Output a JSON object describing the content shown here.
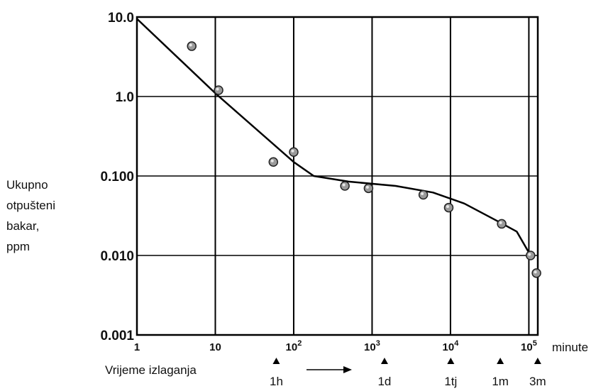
{
  "chart_data": {
    "type": "line",
    "xscale": "log",
    "yscale": "log",
    "xlim": [
      1,
      130000
    ],
    "ylim": [
      0.001,
      10
    ],
    "grid": true,
    "y_ticks": [
      {
        "value": 10,
        "label": "10.0"
      },
      {
        "value": 1,
        "label": "1.0"
      },
      {
        "value": 0.1,
        "label": "0.100"
      },
      {
        "value": 0.01,
        "label": "0.010"
      },
      {
        "value": 0.001,
        "label": "0.001"
      }
    ],
    "x_ticks": [
      {
        "value": 1,
        "base": "1",
        "exp": ""
      },
      {
        "value": 10,
        "base": "10",
        "exp": ""
      },
      {
        "value": 100,
        "base": "10",
        "exp": "2"
      },
      {
        "value": 1000,
        "base": "10",
        "exp": "3"
      },
      {
        "value": 10000,
        "base": "10",
        "exp": "4"
      },
      {
        "value": 100000,
        "base": "10",
        "exp": "5"
      }
    ],
    "ylabel_lines": [
      "Ukupno",
      "otpušteni",
      "bakar,",
      "ppm"
    ],
    "xlabel": "Vrijeme izlaganja",
    "xunit": "minute",
    "markers": [
      {
        "value": 60,
        "label": "1h"
      },
      {
        "value": 1440,
        "label": "1d"
      },
      {
        "value": 10080,
        "label": "1tj"
      },
      {
        "value": 43200,
        "label": "1m"
      },
      {
        "value": 129600,
        "label": "3m"
      }
    ],
    "series": [
      {
        "kind": "points",
        "x": [
          5,
          11,
          55,
          100,
          450,
          900,
          4500,
          9500,
          45000,
          105000,
          125000
        ],
        "y": [
          4.3,
          1.2,
          0.15,
          0.2,
          0.075,
          0.07,
          0.058,
          0.04,
          0.025,
          0.01,
          0.006
        ]
      },
      {
        "kind": "curve",
        "x": [
          1,
          10,
          100,
          180,
          500,
          2000,
          6000,
          15000,
          40000,
          70000,
          105000
        ],
        "y": [
          9.5,
          1.1,
          0.15,
          0.1,
          0.085,
          0.075,
          0.062,
          0.045,
          0.027,
          0.02,
          0.01
        ]
      }
    ]
  }
}
